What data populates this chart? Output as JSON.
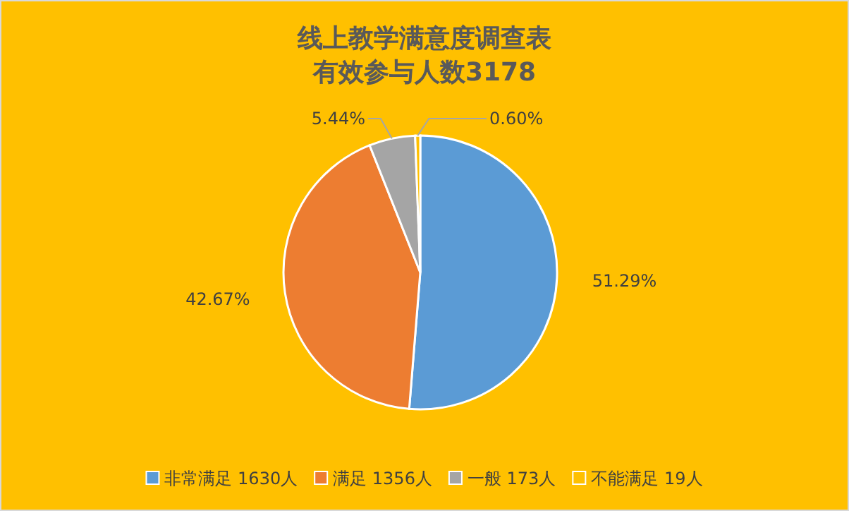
{
  "chart_data": {
    "type": "pie",
    "title": "线上教学满意度调查表",
    "subtitle": "有效参与人数3178",
    "categories": [
      "非常满足 1630人",
      "满足 1356人",
      "一般 173人",
      "不能满足 19人"
    ],
    "values": [
      51.29,
      42.67,
      5.44,
      0.6
    ],
    "value_labels": [
      "51.29%",
      "42.67%",
      "5.44%",
      "0.60%"
    ],
    "colors": [
      "#5b9bd5",
      "#ed7d31",
      "#a5a5a5",
      "#ffc000"
    ],
    "legend": "bottom"
  }
}
